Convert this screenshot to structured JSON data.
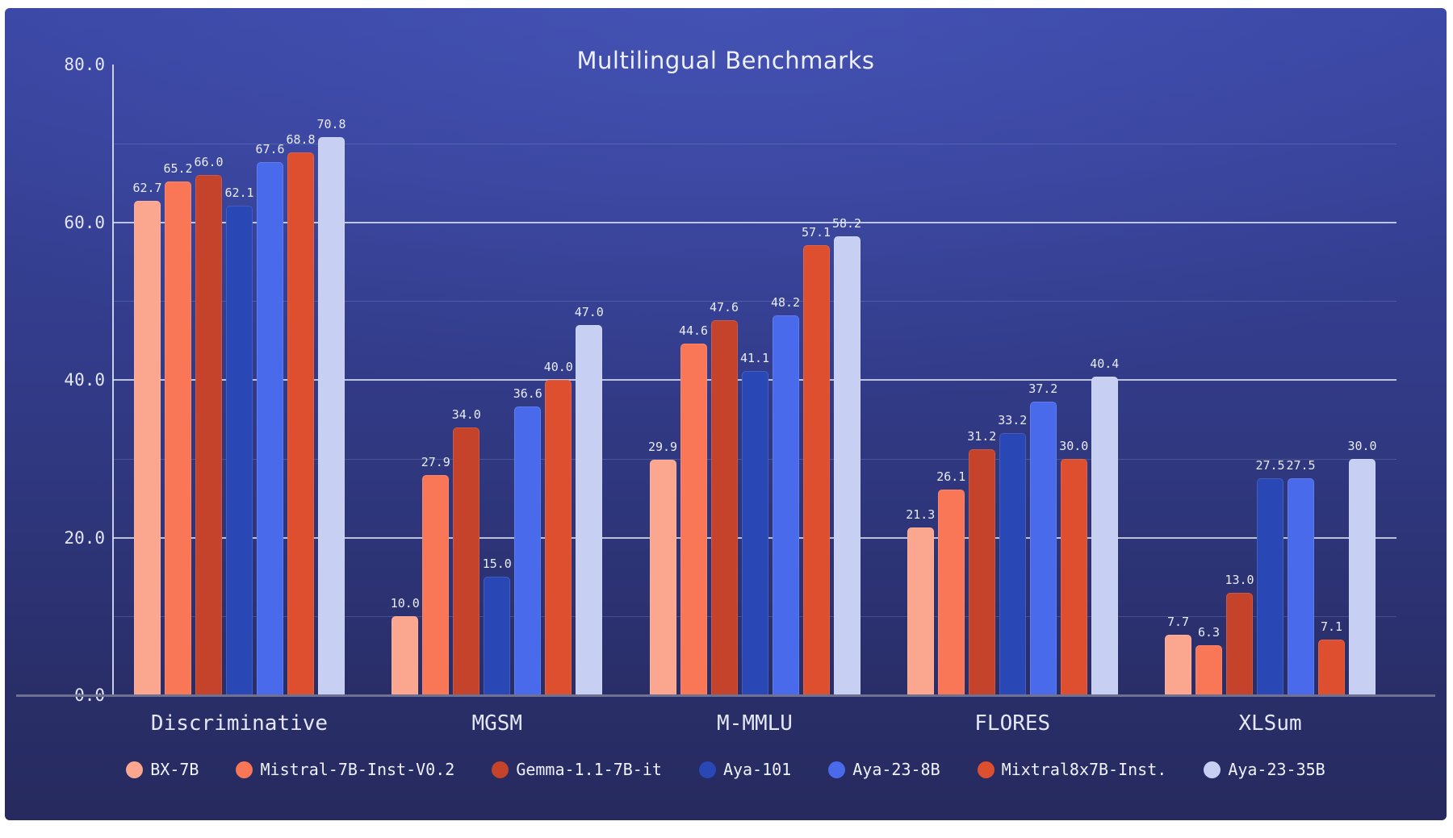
{
  "chart_data": {
    "type": "bar",
    "title": "Multilingual Benchmarks",
    "categories": [
      "Discriminative",
      "MGSM",
      "M-MMLU",
      "FLORES",
      "XLSum"
    ],
    "series": [
      {
        "name": "BX-7B",
        "color": "#FBA78F",
        "values": [
          62.7,
          10.0,
          29.9,
          21.3,
          7.7
        ]
      },
      {
        "name": "Mistral-7B-Inst-V0.2",
        "color": "#F97757",
        "values": [
          65.2,
          27.9,
          44.6,
          26.1,
          6.3
        ]
      },
      {
        "name": "Gemma-1.1-7B-it",
        "color": "#C4432A",
        "values": [
          66.0,
          34.0,
          47.6,
          31.2,
          13.0
        ]
      },
      {
        "name": "Aya-101",
        "color": "#2948B6",
        "values": [
          62.1,
          15.0,
          41.1,
          33.2,
          27.5
        ]
      },
      {
        "name": "Aya-23-8B",
        "color": "#4A6AEC",
        "values": [
          67.6,
          36.6,
          48.2,
          37.2,
          27.5
        ]
      },
      {
        "name": "Mixtral8x7B-Inst.",
        "color": "#DD4F2E",
        "values": [
          68.8,
          40.0,
          57.1,
          30.0,
          7.1
        ]
      },
      {
        "name": "Aya-23-35B",
        "color": "#C7D0F2",
        "values": [
          70.8,
          47.0,
          58.2,
          40.4,
          30.0
        ]
      }
    ],
    "ylim": [
      0,
      80
    ],
    "y_major_ticks": [
      0,
      20,
      40,
      60,
      80
    ],
    "y_minor_ticks": [
      10,
      30,
      50,
      70
    ],
    "tick_label_format": "one_decimal",
    "value_labels": true,
    "grid": true,
    "legend_position": "bottom"
  },
  "colors": {
    "page_background": "#FFFFFF",
    "card_gradient_top": "#3A46A2",
    "card_gradient_bottom": "#262A5E",
    "major_gridline": "#ECF0FC",
    "baseline": "#6E7190",
    "text": "#E8ECF8"
  }
}
